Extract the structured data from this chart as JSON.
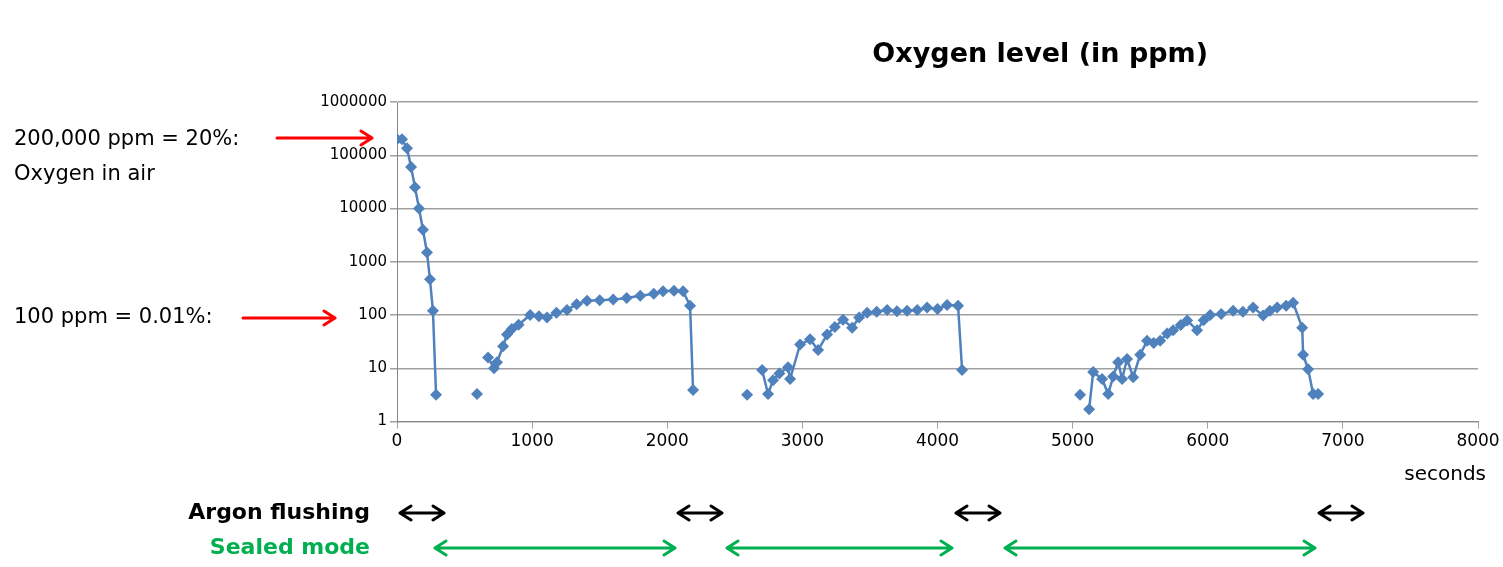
{
  "chart_data": {
    "type": "line",
    "title": "Oxygen level (in ppm)",
    "xlabel": "seconds",
    "series": [
      {
        "color": "#4f81bd",
        "x": [
          0,
          37,
          74,
          104,
          133,
          163,
          192,
          222,
          244,
          266,
          289,
          440,
          592,
          630,
          674,
          718,
          740,
          785,
          814,
          850,
          900,
          985,
          1050,
          1110,
          1180,
          1258,
          1330,
          1406,
          1500,
          1600,
          1700,
          1800,
          1900,
          1969,
          2050,
          2117,
          2169,
          2191,
          2400,
          2591,
          2650,
          2702,
          2746,
          2783,
          2830,
          2894,
          2909,
          2983,
          3057,
          3116,
          3183,
          3240,
          3301,
          3368,
          3420,
          3479,
          3550,
          3627,
          3700,
          3775,
          3850,
          3923,
          4000,
          4071,
          4152,
          4182,
          4600,
          5055,
          5090,
          5122,
          5152,
          5218,
          5263,
          5300,
          5337,
          5366,
          5403,
          5448,
          5500,
          5551,
          5600,
          5648,
          5700,
          5744,
          5800,
          5848,
          5921,
          5970,
          6018,
          6100,
          6188,
          6260,
          6336,
          6410,
          6460,
          6514,
          6580,
          6632,
          6699,
          6706,
          6743,
          6780,
          6817
        ],
        "values": [
          200000,
          200000,
          135000,
          60000,
          25000,
          10000,
          4000,
          1500,
          470,
          120,
          3.2,
          null,
          3.3,
          null,
          16,
          10,
          13,
          26,
          43,
          55,
          66,
          100,
          95,
          90,
          110,
          125,
          160,
          185,
          190,
          195,
          210,
          230,
          250,
          280,
          285,
          280,
          150,
          3.9,
          null,
          3.2,
          null,
          9.3,
          3.3,
          6,
          8,
          10.5,
          6.3,
          28,
          35,
          22,
          43,
          60,
          82,
          58,
          90,
          110,
          115,
          125,
          118,
          120,
          125,
          138,
          130,
          155,
          150,
          9.3,
          null,
          3.2,
          null,
          1.7,
          8.5,
          6.3,
          3.3,
          7,
          13,
          6.3,
          15,
          6.8,
          18,
          33,
          30,
          33,
          45,
          52,
          65,
          79,
          52,
          80,
          100,
          105,
          120,
          115,
          138,
          98,
          120,
          138,
          150,
          170,
          58,
          18,
          9.6,
          3.3,
          3.3
        ]
      }
    ],
    "log": "y",
    "xlim": [
      0,
      8000
    ],
    "xticks": [
      0,
      1000,
      2000,
      3000,
      4000,
      5000,
      6000,
      7000,
      8000
    ],
    "ylim": [
      1,
      1000000
    ],
    "yticks": [
      1,
      10,
      100,
      1000,
      10000,
      100000,
      1000000
    ],
    "grid": "y",
    "legend": false,
    "marker": "diamond",
    "line_style": "solid",
    "annotations": [
      "200,000 ppm = 20%: Oxygen in air",
      "100 ppm = 0.01%:",
      "Argon flushing",
      "Sealed mode"
    ]
  }
}
